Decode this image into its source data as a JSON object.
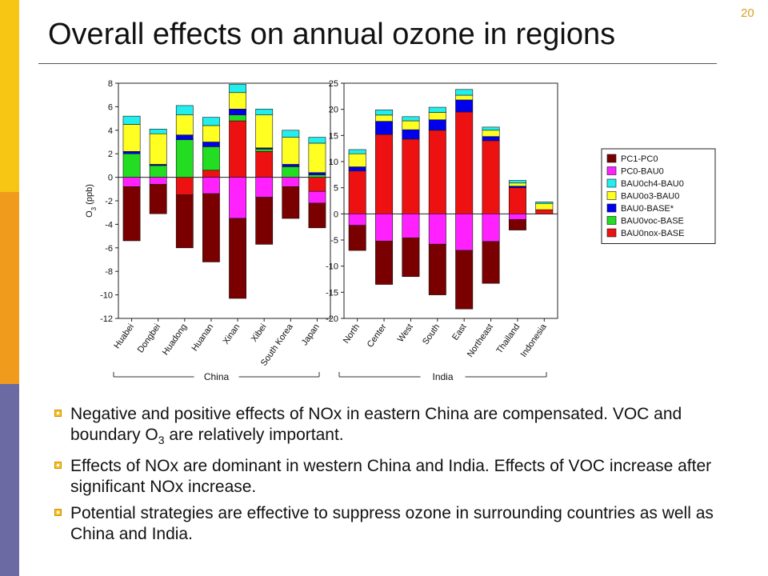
{
  "slide": {
    "title": "Overall effects on annual ozone in regions",
    "page_number": "20",
    "colors": {
      "top_bar": "#f7c514",
      "middle_bar": "#f09b1c",
      "bottom_bar": "#6b6aa3"
    }
  },
  "bullets": [
    {
      "pre": "Negative and positive effects of NOx in eastern China are compensated. VOC and boundary O",
      "sub": "3",
      "post": " are relatively important."
    },
    {
      "pre": "Effects of NOx are dominant in western China and India. Effects of VOC increase after significant NOx increase.",
      "sub": "",
      "post": ""
    },
    {
      "pre": "Potential strategies are effective to suppress ozone in surrounding countries as well as China and India.",
      "sub": "",
      "post": ""
    }
  ],
  "legend": {
    "position": "right",
    "items": [
      {
        "label": "PC1-PC0",
        "color": "#7a0000"
      },
      {
        "label": "PC0-BAU0",
        "color": "#ff22ff"
      },
      {
        "label": "BAU0ch4-BAU0",
        "color": "#22eeee"
      },
      {
        "label": "BAU0o3-BAU0",
        "color": "#ffff22"
      },
      {
        "label": "BAU0-BASE*",
        "color": "#0000ee"
      },
      {
        "label": "BAU0voc-BASE",
        "color": "#22dd22"
      },
      {
        "label": "BAU0nox-BASE",
        "color": "#ee1111"
      }
    ]
  },
  "chart_data": [
    {
      "type": "bar",
      "stacked": true,
      "group_label": "China",
      "ylabel": "O3 (ppb)",
      "ylim": [
        -12,
        8
      ],
      "yticks": [
        8,
        6,
        4,
        2,
        0,
        -2,
        -4,
        -6,
        -8,
        -10,
        -12
      ],
      "categories": [
        "Huabei",
        "Dongbei",
        "Huadong",
        "Huanan",
        "Xinan",
        "Xibei",
        "South Korea",
        "Japan"
      ],
      "series": [
        {
          "name": "BAU0nox-BASE",
          "values": [
            0,
            0,
            -1.5,
            0.6,
            4.8,
            2.2,
            0,
            -1.2
          ]
        },
        {
          "name": "BAU0voc-BASE",
          "values": [
            2.0,
            1.0,
            3.2,
            2.0,
            0.5,
            0.2,
            0.9,
            0.2
          ]
        },
        {
          "name": "BAU0-BASE*",
          "values": [
            0.2,
            0.1,
            0.4,
            0.4,
            0.5,
            0.1,
            0.2,
            0.2
          ]
        },
        {
          "name": "BAU0o3-BAU0",
          "values": [
            2.3,
            2.6,
            1.7,
            1.4,
            1.4,
            2.8,
            2.3,
            2.5
          ]
        },
        {
          "name": "BAU0ch4-BAU0",
          "values": [
            0.7,
            0.4,
            0.8,
            0.7,
            0.7,
            0.5,
            0.6,
            0.5
          ]
        },
        {
          "name": "PC0-BAU0",
          "values": [
            -0.8,
            -0.6,
            0,
            -1.4,
            -3.5,
            -1.7,
            -0.8,
            -1.0
          ]
        },
        {
          "name": "PC1-PC0",
          "values": [
            -4.6,
            -2.5,
            -4.5,
            -5.8,
            -6.8,
            -4.0,
            -2.7,
            -2.1
          ]
        }
      ]
    },
    {
      "type": "bar",
      "stacked": true,
      "group_label": "India",
      "ylabel": "",
      "ylim": [
        -20,
        25
      ],
      "yticks": [
        25,
        20,
        15,
        10,
        5,
        0,
        -5,
        -10,
        -15,
        -20
      ],
      "categories": [
        "North",
        "Center",
        "West",
        "South",
        "East",
        "Northeast",
        "Thailand",
        "Indonesia"
      ],
      "series": [
        {
          "name": "BAU0nox-BASE",
          "values": [
            8.2,
            15.2,
            14.3,
            16.0,
            19.5,
            14.0,
            5.0,
            0.8
          ]
        },
        {
          "name": "BAU0voc-BASE",
          "values": [
            0,
            0,
            0,
            0,
            0,
            0,
            0,
            0
          ]
        },
        {
          "name": "BAU0-BASE*",
          "values": [
            0.8,
            2.5,
            1.8,
            2.0,
            2.3,
            0.8,
            0.3,
            0
          ]
        },
        {
          "name": "BAU0o3-BAU0",
          "values": [
            2.5,
            1.2,
            1.7,
            1.4,
            0.9,
            1.2,
            0.6,
            1.2
          ]
        },
        {
          "name": "BAU0ch4-BAU0",
          "values": [
            0.8,
            1.0,
            0.8,
            1.0,
            1.1,
            0.6,
            0.5,
            0.3
          ]
        },
        {
          "name": "PC0-BAU0",
          "values": [
            -2.2,
            -5.2,
            -4.6,
            -5.8,
            -7.0,
            -5.3,
            -1.1,
            0
          ]
        },
        {
          "name": "PC1-PC0",
          "values": [
            -4.8,
            -8.3,
            -7.4,
            -9.7,
            -11.2,
            -8.0,
            -2.0,
            0
          ]
        }
      ]
    }
  ]
}
